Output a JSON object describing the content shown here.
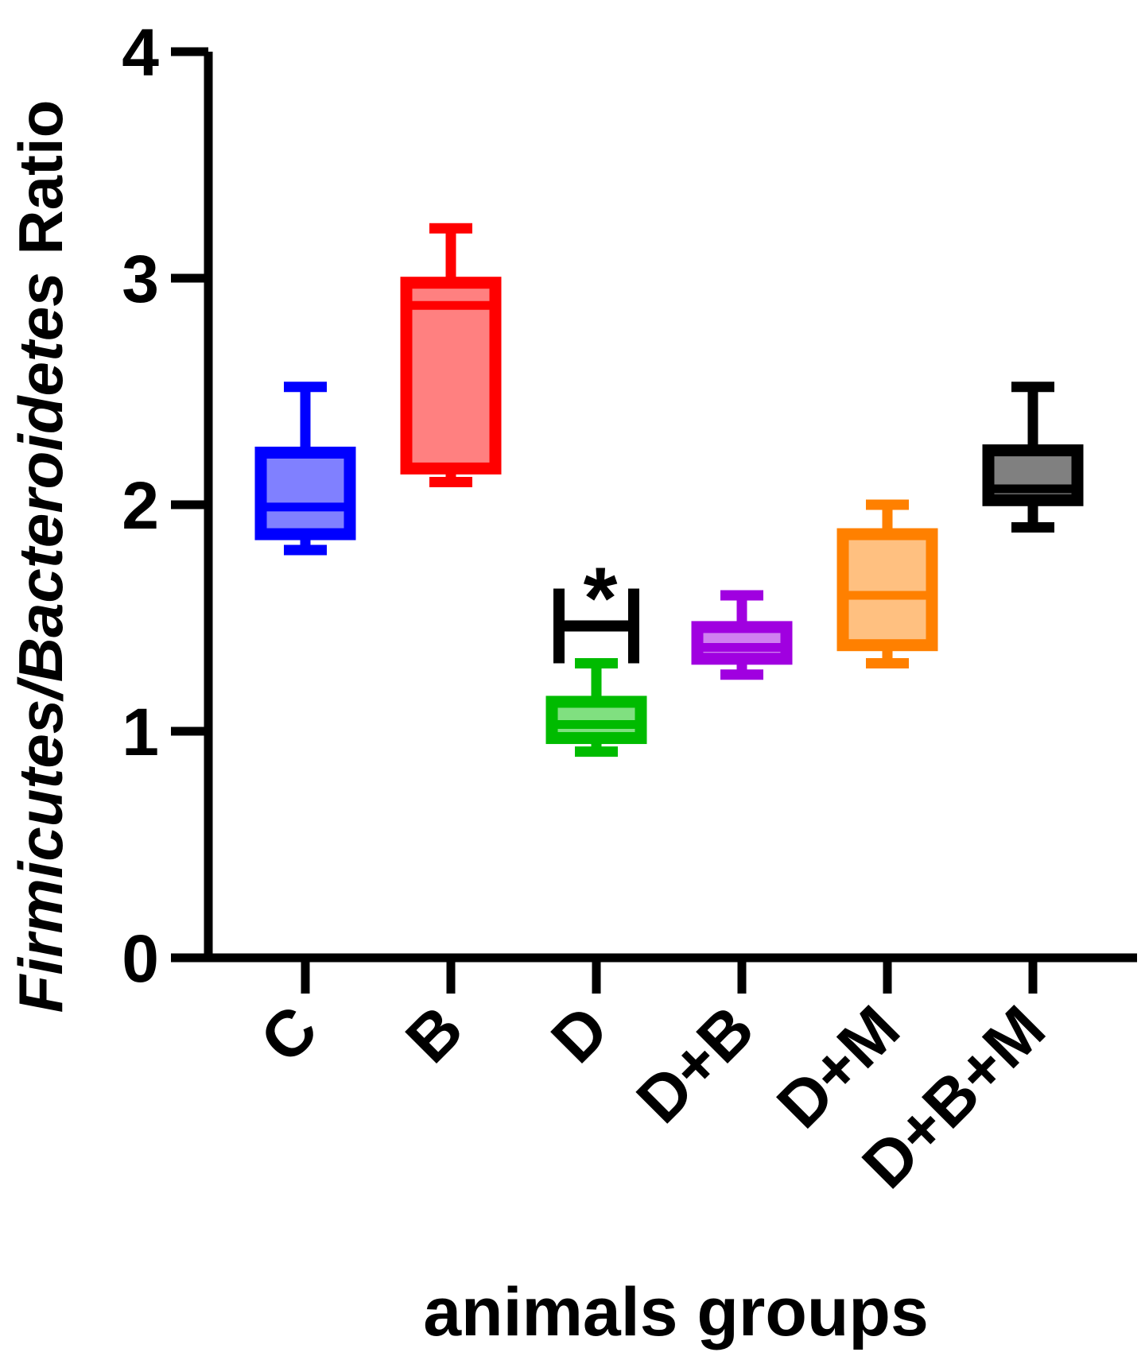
{
  "chart_data": {
    "type": "box",
    "title": "",
    "xlabel": "animals groups",
    "ylabel_italic": "Firmicutes/Bacteroidetes",
    "ylabel_suffix": " Ratio",
    "ylim": [
      0,
      4
    ],
    "yticks": [
      0,
      1,
      2,
      3,
      4
    ],
    "grid": false,
    "legend": "none",
    "categories": [
      "C",
      "B",
      "D",
      "D+B",
      "D+M",
      "D+B+M"
    ],
    "boxes": [
      {
        "label": "C",
        "min": 1.8,
        "q1": 1.87,
        "median": 1.99,
        "q3": 2.23,
        "max": 2.52,
        "stroke": "#0000ff",
        "fill": "#8080ff"
      },
      {
        "label": "B",
        "min": 2.1,
        "q1": 2.16,
        "median": 2.88,
        "q3": 2.98,
        "max": 3.22,
        "stroke": "#ff0000",
        "fill": "#ff8080"
      },
      {
        "label": "D",
        "min": 0.91,
        "q1": 0.97,
        "median": 1.03,
        "q3": 1.13,
        "max": 1.3,
        "stroke": "#00bb00",
        "fill": "#80e080"
      },
      {
        "label": "D+B",
        "min": 1.25,
        "q1": 1.32,
        "median": 1.37,
        "q3": 1.46,
        "max": 1.6,
        "stroke": "#a000e0",
        "fill": "#d080f0"
      },
      {
        "label": "D+M",
        "min": 1.3,
        "q1": 1.38,
        "median": 1.6,
        "q3": 1.87,
        "max": 2.0,
        "stroke": "#ff8000",
        "fill": "#ffc080"
      },
      {
        "label": "D+B+M",
        "min": 1.9,
        "q1": 2.02,
        "median": 2.07,
        "q3": 2.24,
        "max": 2.52,
        "stroke": "#000000",
        "fill": "#808080"
      }
    ],
    "annotations": [
      {
        "text": "*",
        "x": "D",
        "y": 1.62,
        "bracket_low": 1.3,
        "bracket_high": 1.63,
        "color": "#000000"
      }
    ]
  }
}
